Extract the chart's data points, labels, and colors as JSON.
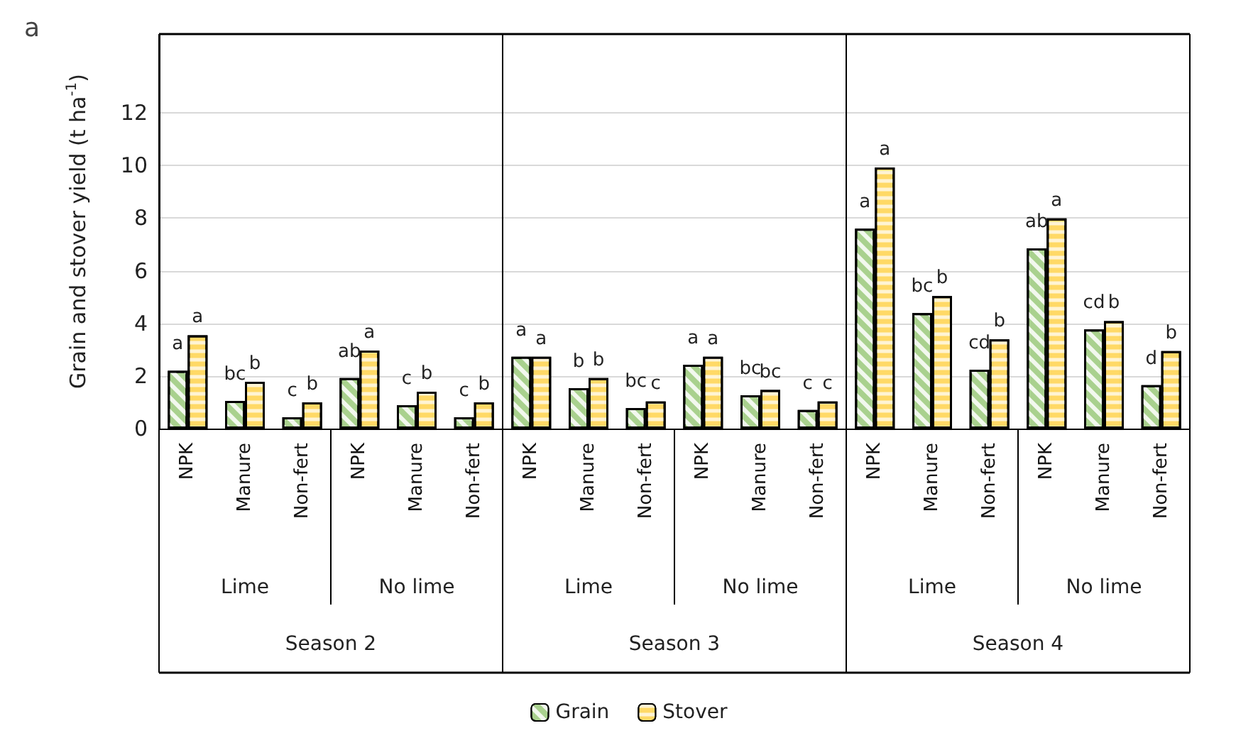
{
  "chart_data": {
    "type": "bar",
    "title": "a",
    "ylabel": "Grain and stover yield (t ha$^{-1}$)",
    "categories": [
      "NPK",
      "Manure",
      "Non-fert",
      "NPK",
      "Manure",
      "Non-fert",
      "NPK",
      "Manure",
      "Non-fert",
      "NPK",
      "Manure",
      "Non-fert",
      "NPK",
      "Manure",
      "Non-fert",
      "NPK",
      "Manure",
      "Non-fert"
    ],
    "series": [
      {
        "name": "Grain",
        "color": "#a9d18e",
        "values": [
          2.2,
          1.05,
          0.43,
          1.92,
          0.89,
          0.43,
          2.73,
          1.54,
          0.78,
          2.43,
          1.27,
          0.71,
          7.6,
          4.39,
          2.24,
          6.85,
          3.77,
          1.65
        ],
        "value_labels": [
          "a",
          "bc",
          "c",
          "ab",
          "c",
          "c",
          "a",
          "b",
          "bc",
          "a",
          "bc",
          "c",
          "a",
          "bc",
          "cd",
          "ab",
          "cd",
          "d"
        ]
      },
      {
        "name": "Stover",
        "color": "#ffd966",
        "values": [
          3.55,
          1.78,
          1.0,
          2.97,
          1.4,
          1.0,
          2.73,
          1.92,
          1.03,
          2.73,
          1.47,
          1.03,
          9.93,
          5.04,
          3.39,
          7.99,
          4.09,
          2.95
        ],
        "value_labels": [
          "a",
          "b",
          "b",
          "a",
          "b",
          "b",
          "a",
          "b",
          "c",
          "a",
          "bc",
          "c",
          "a",
          "b",
          "b",
          "a",
          "b",
          "b"
        ]
      }
    ],
    "annotations": [
      "Lime",
      "No lime",
      "Lime",
      "No lime",
      "Lime",
      "No lime",
      "Season 2",
      "Season 3",
      "Season 4"
    ],
    "ylim": [
      0,
      15
    ],
    "yticks": [
      0,
      2,
      4,
      6,
      8,
      10,
      12
    ],
    "grid": "y",
    "legend": "bottom"
  }
}
